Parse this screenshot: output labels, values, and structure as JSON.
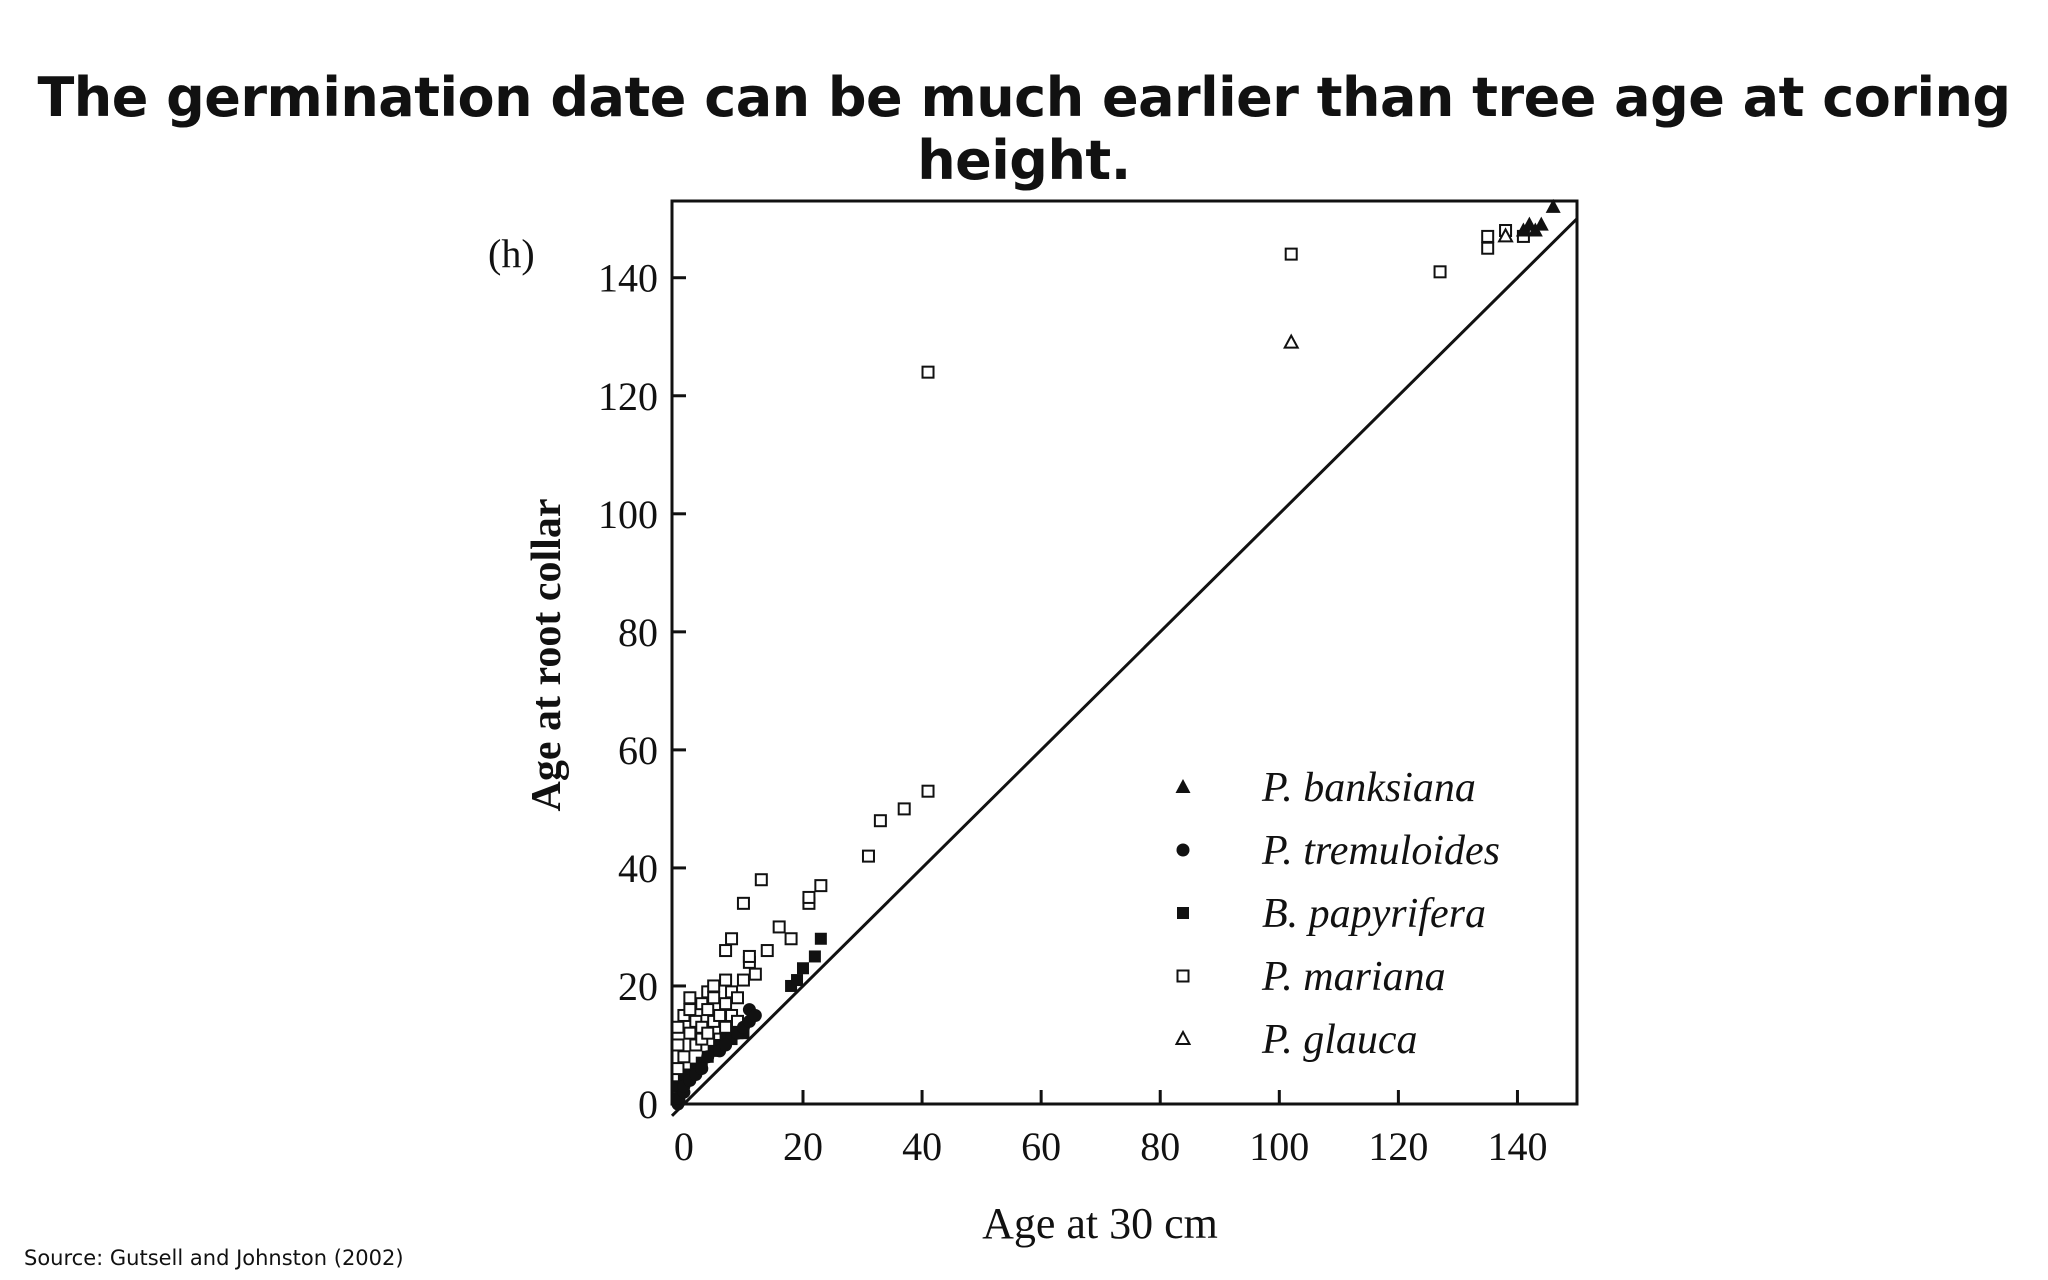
{
  "slide": {
    "title": "The germination date can be much earlier than tree age at coring height.",
    "source": "Source: Gutsell and Johnston (2002)"
  },
  "chart_data": {
    "type": "scatter",
    "panel_label": "(h)",
    "xlabel": "Age at 30 cm",
    "ylabel": "Age at root collar",
    "xlim": [
      -2,
      150
    ],
    "ylim": [
      0,
      153
    ],
    "xticks": [
      0,
      20,
      40,
      60,
      80,
      100,
      120,
      140
    ],
    "yticks": [
      0,
      20,
      40,
      60,
      80,
      100,
      120,
      140
    ],
    "grid": false,
    "legend_position": "bottom-right",
    "reference_line": {
      "from": [
        -2,
        -2
      ],
      "to": [
        150,
        150
      ]
    },
    "series": [
      {
        "name": "P. banksiana",
        "marker": "triangle-filled",
        "points": [
          [
            141,
            148
          ],
          [
            142,
            149
          ],
          [
            143,
            148
          ],
          [
            144,
            149
          ],
          [
            146,
            152
          ]
        ]
      },
      {
        "name": "P. tremuloides",
        "marker": "circle-filled",
        "points": [
          [
            -1,
            0
          ],
          [
            -1,
            1
          ],
          [
            0,
            2
          ],
          [
            0,
            3
          ],
          [
            1,
            4
          ],
          [
            2,
            5
          ],
          [
            3,
            6
          ],
          [
            4,
            8
          ],
          [
            6,
            9
          ],
          [
            7,
            10
          ],
          [
            9,
            12
          ],
          [
            10,
            13
          ],
          [
            11,
            14
          ],
          [
            11,
            16
          ],
          [
            12,
            15
          ]
        ]
      },
      {
        "name": "B. papyrifera",
        "marker": "square-filled",
        "points": [
          [
            -1,
            1
          ],
          [
            -1,
            3
          ],
          [
            0,
            4
          ],
          [
            1,
            5
          ],
          [
            2,
            6
          ],
          [
            3,
            7
          ],
          [
            4,
            8
          ],
          [
            5,
            9
          ],
          [
            6,
            10
          ],
          [
            7,
            11
          ],
          [
            8,
            11
          ],
          [
            9,
            12
          ],
          [
            10,
            12
          ],
          [
            18,
            20
          ],
          [
            19,
            21
          ],
          [
            20,
            23
          ],
          [
            22,
            25
          ],
          [
            23,
            28
          ]
        ]
      },
      {
        "name": "P. mariana",
        "marker": "square-open",
        "points": [
          [
            -1,
            6
          ],
          [
            -1,
            10
          ],
          [
            -1,
            13
          ],
          [
            0,
            8
          ],
          [
            0,
            15
          ],
          [
            1,
            12
          ],
          [
            1,
            16
          ],
          [
            1,
            18
          ],
          [
            2,
            10
          ],
          [
            2,
            14
          ],
          [
            3,
            11
          ],
          [
            3,
            13
          ],
          [
            3,
            17
          ],
          [
            4,
            12
          ],
          [
            4,
            16
          ],
          [
            4,
            19
          ],
          [
            5,
            14
          ],
          [
            5,
            18
          ],
          [
            5,
            20
          ],
          [
            6,
            11
          ],
          [
            6,
            15
          ],
          [
            7,
            13
          ],
          [
            7,
            17
          ],
          [
            7,
            21
          ],
          [
            7,
            26
          ],
          [
            8,
            28
          ],
          [
            8,
            19
          ],
          [
            8,
            15
          ],
          [
            9,
            14
          ],
          [
            9,
            18
          ],
          [
            10,
            21
          ],
          [
            10,
            34
          ],
          [
            11,
            24
          ],
          [
            11,
            25
          ],
          [
            12,
            22
          ],
          [
            13,
            38
          ],
          [
            14,
            26
          ],
          [
            16,
            30
          ],
          [
            18,
            28
          ],
          [
            21,
            34
          ],
          [
            21,
            35
          ],
          [
            23,
            37
          ],
          [
            31,
            42
          ],
          [
            33,
            48
          ],
          [
            37,
            50
          ],
          [
            41,
            53
          ],
          [
            41,
            124
          ],
          [
            102,
            144
          ],
          [
            127,
            141
          ],
          [
            135,
            145
          ],
          [
            135,
            147
          ],
          [
            138,
            148
          ],
          [
            141,
            147
          ]
        ]
      },
      {
        "name": "P. glauca",
        "marker": "triangle-open",
        "points": [
          [
            102,
            129
          ],
          [
            138,
            147
          ]
        ]
      }
    ]
  }
}
